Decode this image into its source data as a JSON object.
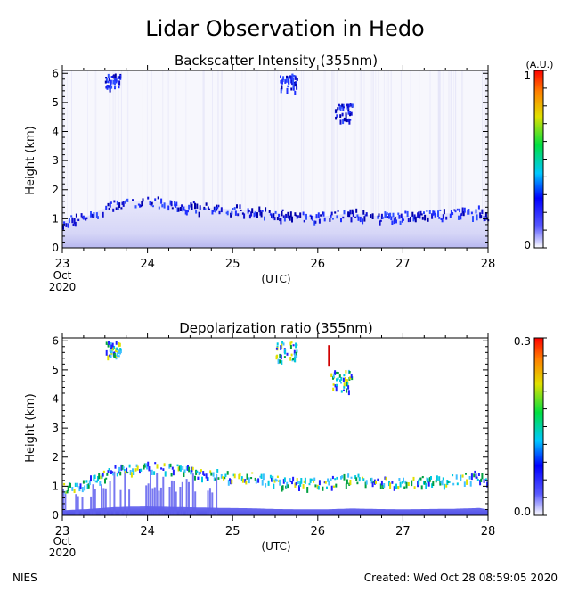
{
  "page": {
    "title": "Lidar Observation in Hedo",
    "footer_left": "NIES",
    "footer_right": "Created: Wed Oct 28 08:59:05 2020"
  },
  "chart_data": [
    {
      "type": "heatmap",
      "title": "Backscatter Intensity (355nm)",
      "ylabel": "Height (km)",
      "xlabel": "(UTC)",
      "x_ticks": [
        "23",
        "24",
        "25",
        "26",
        "27",
        "28"
      ],
      "x_first_tick_sublabels": [
        "Oct",
        "2020"
      ],
      "xlim": [
        23,
        28
      ],
      "y_ticks": [
        "0",
        "1",
        "2",
        "3",
        "4",
        "5",
        "6"
      ],
      "ylim": [
        0,
        6.1
      ],
      "colorbar": {
        "unit": "(A.U.)",
        "min_label": "0",
        "max_label": "1",
        "range": [
          0,
          1
        ]
      },
      "boundary_layer_top_km": [
        [
          23.0,
          0.9
        ],
        [
          23.3,
          1.1
        ],
        [
          23.6,
          1.5
        ],
        [
          23.8,
          1.6
        ],
        [
          24.0,
          1.65
        ],
        [
          24.3,
          1.5
        ],
        [
          24.6,
          1.4
        ],
        [
          24.9,
          1.35
        ],
        [
          25.2,
          1.3
        ],
        [
          25.5,
          1.2
        ],
        [
          25.8,
          1.1
        ],
        [
          26.1,
          1.1
        ],
        [
          26.4,
          1.2
        ],
        [
          26.7,
          1.1
        ],
        [
          27.0,
          1.1
        ],
        [
          27.3,
          1.15
        ],
        [
          27.6,
          1.2
        ],
        [
          27.9,
          1.3
        ],
        [
          28.0,
          1.1
        ]
      ],
      "cloud_patches": [
        {
          "x": [
            23.5,
            23.68
          ],
          "y": [
            5.5,
            6.0
          ]
        },
        {
          "x": [
            25.55,
            25.75
          ],
          "y": [
            5.4,
            6.0
          ]
        },
        {
          "x": [
            26.2,
            26.4
          ],
          "y": [
            4.4,
            5.0
          ]
        }
      ]
    },
    {
      "type": "heatmap",
      "title": "Depolarization ratio (355nm)",
      "ylabel": "Height (km)",
      "xlabel": "(UTC)",
      "x_ticks": [
        "23",
        "24",
        "25",
        "26",
        "27",
        "28"
      ],
      "x_first_tick_sublabels": [
        "Oct",
        "2020"
      ],
      "xlim": [
        23,
        28
      ],
      "y_ticks": [
        "0",
        "1",
        "2",
        "3",
        "4",
        "5",
        "6"
      ],
      "ylim": [
        0,
        6.1
      ],
      "colorbar": {
        "min_label": "0.0",
        "max_label": "0.3",
        "range": [
          0.0,
          0.3
        ]
      },
      "boundary_layer_top_km": [
        [
          23.0,
          0.95
        ],
        [
          23.3,
          1.2
        ],
        [
          23.6,
          1.55
        ],
        [
          23.8,
          1.65
        ],
        [
          24.0,
          1.7
        ],
        [
          24.3,
          1.6
        ],
        [
          24.6,
          1.5
        ],
        [
          24.9,
          1.4
        ],
        [
          25.2,
          1.35
        ],
        [
          25.5,
          1.2
        ],
        [
          25.8,
          1.15
        ],
        [
          26.1,
          1.15
        ],
        [
          26.4,
          1.3
        ],
        [
          26.7,
          1.2
        ],
        [
          27.0,
          1.15
        ],
        [
          27.3,
          1.2
        ],
        [
          27.6,
          1.25
        ],
        [
          27.9,
          1.4
        ],
        [
          28.0,
          1.1
        ]
      ],
      "cloud_patches": [
        {
          "x": [
            23.5,
            23.68
          ],
          "y": [
            5.5,
            6.0
          ]
        },
        {
          "x": [
            25.5,
            25.75
          ],
          "y": [
            5.3,
            6.0
          ]
        },
        {
          "x": [
            26.15,
            26.4
          ],
          "y": [
            4.3,
            5.0
          ]
        }
      ]
    }
  ]
}
